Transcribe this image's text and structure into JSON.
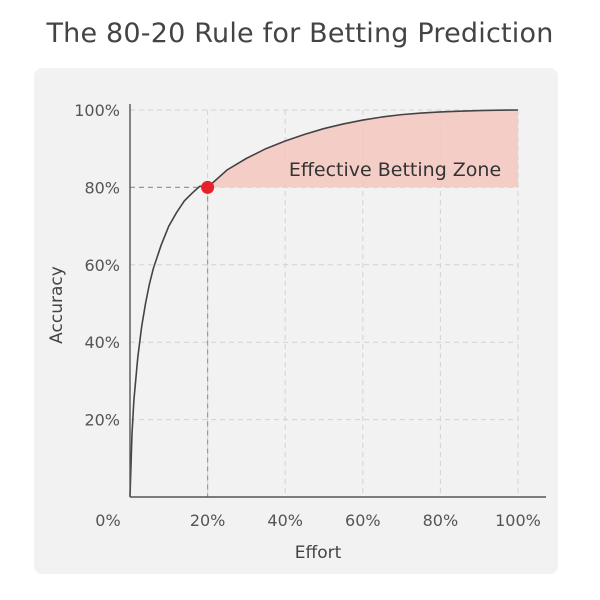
{
  "title": "The 80-20 Rule for Betting Prediction",
  "colors": {
    "panel_background": "#f2f2f2",
    "curve": "#444444",
    "zone_fill": "#f4c8be",
    "marker": "#e8202a",
    "grid": "#d2d2d2",
    "guide": "#999999"
  },
  "chart_data": {
    "type": "line",
    "title": "The 80-20 Rule for Betting Prediction",
    "xlabel": "Effort",
    "ylabel": "Accuracy",
    "xlim": [
      0,
      100
    ],
    "ylim": [
      0,
      100
    ],
    "x_ticks": [
      "0%",
      "20%",
      "40%",
      "60%",
      "80%",
      "100%"
    ],
    "y_ticks": [
      "20%",
      "40%",
      "60%",
      "80%",
      "100%"
    ],
    "grid": true,
    "series": [
      {
        "x": [
          0,
          0.5,
          1,
          2,
          3,
          4,
          5,
          6,
          8,
          10,
          12,
          14,
          16,
          18,
          20,
          25,
          30,
          35,
          40,
          45,
          50,
          55,
          60,
          65,
          70,
          75,
          80,
          85,
          90,
          95,
          100
        ],
        "y": [
          0,
          16,
          25,
          36,
          44,
          50,
          55,
          59,
          65,
          70,
          73.5,
          76.5,
          78.5,
          80.3,
          80,
          84.5,
          87.5,
          90,
          92,
          93.7,
          95.2,
          96.4,
          97.4,
          98.2,
          98.8,
          99.2,
          99.5,
          99.7,
          99.85,
          99.95,
          100
        ]
      }
    ],
    "highlight_point": {
      "x": 20,
      "y": 80
    },
    "highlight_zone": {
      "label": "Effective Betting Zone",
      "x_range": [
        20,
        100
      ],
      "y_min": 80
    }
  }
}
